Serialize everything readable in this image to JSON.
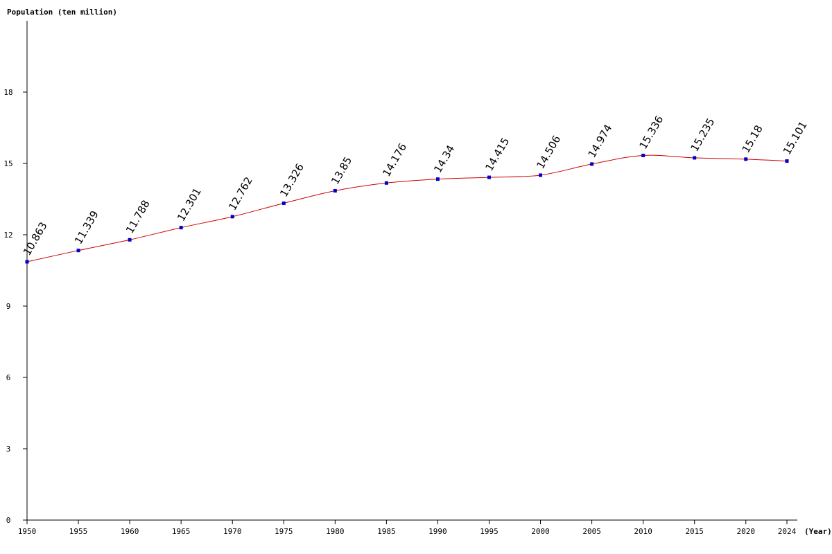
{
  "chart_data": {
    "type": "line",
    "ylabel": "Population (ten million)",
    "xlabel": "(Year)",
    "x": [
      1950,
      1955,
      1960,
      1965,
      1970,
      1975,
      1980,
      1985,
      1990,
      1995,
      2000,
      2005,
      2010,
      2015,
      2020,
      2024
    ],
    "series": [
      {
        "values": [
          10.863,
          11.339,
          11.788,
          12.301,
          12.762,
          13.326,
          13.85,
          14.176,
          14.34,
          14.415,
          14.506,
          14.974,
          15.336,
          15.235,
          15.18,
          15.101
        ],
        "labels": [
          "10.863",
          "11.339",
          "11.788",
          "12.301",
          "12.762",
          "13.326",
          "13.85",
          "14.176",
          "14.34",
          "14.415",
          "14.506",
          "14.974",
          "15.336",
          "15.235",
          "15.18",
          "15.101"
        ]
      }
    ],
    "yticks": [
      "0",
      "3",
      "6",
      "9",
      "12",
      "15",
      "18"
    ],
    "xticks": [
      "1950",
      "1955",
      "1960",
      "1965",
      "1970",
      "1975",
      "1980",
      "1985",
      "1990",
      "1995",
      "2000",
      "2005",
      "2010",
      "2015",
      "2020",
      "2024"
    ],
    "ylim": [
      0,
      21
    ],
    "xlim": [
      1950,
      2024
    ],
    "grid": false,
    "colors": {
      "line": "#cc0000",
      "marker": "#0000cc",
      "axis": "#000000"
    }
  }
}
